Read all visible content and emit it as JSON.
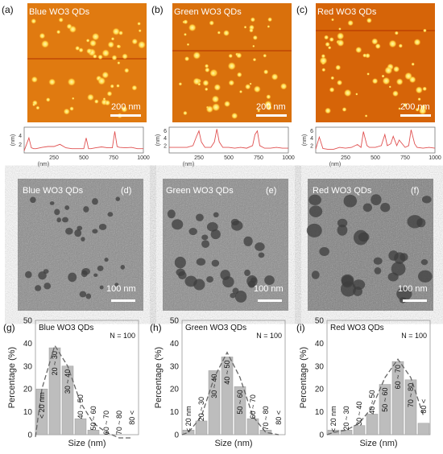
{
  "panels": [
    {
      "letter": "(a)",
      "title": "Blue WO3 QDs",
      "scale": "200 nm"
    },
    {
      "letter": "(b)",
      "title": "Green WO3 QDs",
      "scale": "200 nm"
    },
    {
      "letter": "(c)",
      "title": "Red WO3 QDs",
      "scale": "200 nm"
    }
  ],
  "tem": [
    {
      "letter": "(d)",
      "title": "Blue WO3 QDs",
      "scale": "100 nm"
    },
    {
      "letter": "(e)",
      "title": "Green WO3 QDs",
      "scale": "100 nm"
    },
    {
      "letter": "(f)",
      "title": "Red WO3 QDs",
      "scale": "100 nm"
    }
  ],
  "hist_labels": [
    {
      "letter": "(g)",
      "title": "Blue WO3 QDs",
      "n": "N = 100"
    },
    {
      "letter": "(h)",
      "title": "Green WO3 QDs",
      "n": "N = 100"
    },
    {
      "letter": "(i)",
      "title": "Red WO3 QDs",
      "n": "N = 100"
    }
  ],
  "colors": {
    "afm_bg": "#e07a10",
    "afm_spot": "#ffe066",
    "profile_line": "#e05050",
    "bar": "#bdbdbd",
    "fit": "#666666"
  },
  "chart_data": [
    {
      "type": "line",
      "title": "",
      "xlabel": "(nm)",
      "ylabel": "(nm)",
      "xlim": [
        0,
        1000
      ],
      "ylim": [
        0,
        6
      ],
      "xticks": [
        250,
        500,
        750,
        1000
      ],
      "yticks": [
        2,
        4
      ],
      "x": [
        0,
        40,
        60,
        80,
        100,
        150,
        200,
        250,
        300,
        350,
        400,
        450,
        500,
        520,
        540,
        560,
        600,
        650,
        700,
        740,
        760,
        780,
        800,
        850,
        900,
        950,
        1000
      ],
      "y": [
        0.5,
        3.5,
        1.2,
        1,
        1,
        1.3,
        1.5,
        1.5,
        2,
        1.2,
        1,
        1,
        1,
        3.5,
        1,
        1,
        1.2,
        1.4,
        1.2,
        1.2,
        5,
        1.5,
        1.3,
        1.2,
        1.3,
        1,
        1
      ]
    },
    {
      "type": "line",
      "title": "",
      "xlabel": "(nm)",
      "ylabel": "(nm)",
      "xlim": [
        0,
        1000
      ],
      "ylim": [
        0,
        7
      ],
      "xticks": [
        250,
        500,
        750,
        1000
      ],
      "yticks": [
        2,
        4,
        6
      ],
      "x": [
        0,
        50,
        100,
        150,
        200,
        230,
        250,
        270,
        300,
        350,
        380,
        400,
        420,
        450,
        500,
        550,
        600,
        650,
        700,
        720,
        740,
        760,
        800,
        850,
        900,
        950,
        1000
      ],
      "y": [
        1.5,
        1.5,
        1.5,
        1.5,
        2,
        4.5,
        6,
        3,
        1.5,
        1.5,
        3,
        6.5,
        3,
        1.5,
        1.5,
        1.3,
        1.5,
        1.3,
        2,
        5,
        6,
        2,
        1.3,
        1.3,
        1.5,
        1.3,
        1.3
      ]
    },
    {
      "type": "line",
      "title": "",
      "xlabel": "(nm)",
      "ylabel": "(nm)",
      "xlim": [
        0,
        1000
      ],
      "ylim": [
        0,
        7
      ],
      "xticks": [
        250,
        500,
        750,
        1000
      ],
      "yticks": [
        2,
        4,
        6
      ],
      "x": [
        0,
        30,
        60,
        100,
        150,
        200,
        250,
        300,
        350,
        380,
        400,
        430,
        450,
        500,
        550,
        580,
        600,
        630,
        650,
        680,
        700,
        750,
        780,
        800,
        830,
        850,
        900,
        950,
        1000
      ],
      "y": [
        1,
        4.3,
        1.2,
        1,
        1,
        1.5,
        1.3,
        1.5,
        2.3,
        1.5,
        5.8,
        2,
        1.5,
        1.5,
        2,
        5,
        2,
        2.5,
        4.5,
        2,
        3.5,
        1.5,
        2,
        6.3,
        2.5,
        1.5,
        1.3,
        1.5,
        1.3
      ]
    },
    {
      "type": "bar",
      "title": "Blue WO3 QDs",
      "xlabel": "Size (nm)",
      "ylabel": "Percentage (%)",
      "ylim": [
        0,
        50
      ],
      "yticks": [
        0,
        10,
        20,
        30,
        40,
        50
      ],
      "categories": [
        "< 20 nm",
        "20 ~ 30",
        "30 ~ 40",
        "40 ~ 50",
        "50 ~ 60",
        "60 ~ 70",
        "70 ~ 80",
        "80 <"
      ],
      "values": [
        20,
        38,
        30,
        7,
        2,
        0,
        0,
        0
      ],
      "fit": [
        [
          -0.5,
          -1
        ],
        [
          0,
          20
        ],
        [
          1,
          39
        ],
        [
          2,
          30
        ],
        [
          3,
          14
        ],
        [
          4,
          5
        ],
        [
          5,
          1
        ],
        [
          6,
          -2
        ],
        [
          7,
          -4
        ]
      ]
    },
    {
      "type": "bar",
      "title": "Green WO3 QDs",
      "xlabel": "Size (nm)",
      "ylabel": "Percentage (%)",
      "ylim": [
        0,
        50
      ],
      "yticks": [
        0,
        10,
        20,
        30,
        40,
        50
      ],
      "categories": [
        "< 20 nm",
        "20 ~ 30",
        "30 ~ 40",
        "40 ~ 50",
        "50 ~ 60",
        "60 ~ 70",
        "70 ~ 80",
        "80 <"
      ],
      "values": [
        2,
        6,
        28,
        34,
        21,
        7,
        2,
        0
      ],
      "fit": [
        [
          -0.5,
          0
        ],
        [
          0,
          1
        ],
        [
          1,
          8
        ],
        [
          2,
          25
        ],
        [
          3,
          36
        ],
        [
          4,
          25
        ],
        [
          5,
          8
        ],
        [
          6,
          1
        ],
        [
          7,
          0
        ]
      ]
    },
    {
      "type": "bar",
      "title": "Red WO3 QDs",
      "xlabel": "Size (nm)",
      "ylabel": "Percentage (%)",
      "ylim": [
        0,
        50
      ],
      "yticks": [
        0,
        10,
        20,
        30,
        40,
        50
      ],
      "categories": [
        "< 20 nm",
        "20 ~ 30",
        "30 ~ 40",
        "40 ~ 50",
        "50 ~ 60",
        "60 ~ 70",
        "70 ~ 80",
        "80 <"
      ],
      "values": [
        2,
        2,
        4,
        9,
        22,
        32,
        24,
        5
      ],
      "fit": [
        [
          -0.5,
          0
        ],
        [
          0,
          1
        ],
        [
          1,
          2
        ],
        [
          2,
          5
        ],
        [
          3,
          12
        ],
        [
          4,
          25
        ],
        [
          5,
          33
        ],
        [
          6,
          25
        ],
        [
          7,
          8
        ]
      ]
    }
  ]
}
